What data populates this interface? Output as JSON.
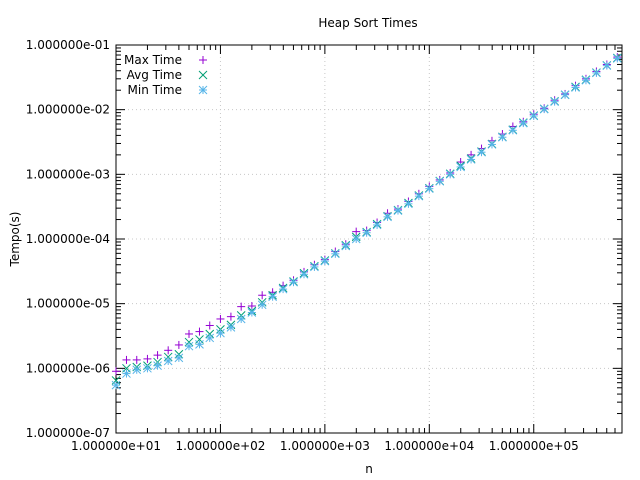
{
  "chart_data": {
    "type": "scatter",
    "title": "Heap Sort Times",
    "xlabel": "n",
    "ylabel": "Tempo(s)",
    "xscale": "log",
    "yscale": "log",
    "xlim": [
      10,
      700000
    ],
    "ylim": [
      1e-07,
      0.1
    ],
    "grid": true,
    "legend_position": "top-left",
    "x_tick_labels": [
      "1.000000e+01",
      "1.000000e+02",
      "1.000000e+03",
      "1.000000e+04",
      "1.000000e+05"
    ],
    "y_tick_labels": [
      "1.000000e-07",
      "1.000000e-06",
      "1.000000e-05",
      "1.000000e-04",
      "1.000000e-03",
      "1.000000e-02",
      "1.000000e-01"
    ],
    "x": [
      10,
      12.6,
      15.8,
      20,
      25,
      31.6,
      40,
      50,
      63,
      79,
      100,
      126,
      158,
      200,
      251,
      316,
      398,
      501,
      631,
      794,
      1000,
      1259,
      1585,
      1995,
      2512,
      3162,
      3981,
      5012,
      6310,
      7943,
      10000,
      12589,
      15849,
      19953,
      25119,
      31623,
      39811,
      50119,
      63096,
      79433,
      100000,
      125893,
      158489,
      199526,
      251189,
      316228,
      398107,
      501187,
      630957
    ],
    "series": [
      {
        "name": "Max Time",
        "color": "#9400d3",
        "marker": "plus",
        "values": [
          9e-07,
          1.35e-06,
          1.35e-06,
          1.4e-06,
          1.6e-06,
          1.9e-06,
          2.3e-06,
          3.4e-06,
          3.7e-06,
          4.6e-06,
          5.8e-06,
          6.3e-06,
          9e-06,
          9.2e-06,
          1.35e-05,
          1.5e-05,
          1.9e-05,
          2.3e-05,
          3.1e-05,
          4e-05,
          4.8e-05,
          6.4e-05,
          8.3e-05,
          0.00013,
          0.000135,
          0.00018,
          0.00025,
          0.00029,
          0.00038,
          0.0005,
          0.00065,
          0.00082,
          0.00105,
          0.00155,
          0.002,
          0.0025,
          0.0033,
          0.0042,
          0.0055,
          0.0065,
          0.0085,
          0.0105,
          0.014,
          0.0175,
          0.0235,
          0.03,
          0.039,
          0.05,
          0.065
        ]
      },
      {
        "name": "Avg Time",
        "color": "#009e73",
        "marker": "cross",
        "values": [
          6.5e-07,
          1e-06,
          1.05e-06,
          1.1e-06,
          1.25e-06,
          1.5e-06,
          1.65e-06,
          2.55e-06,
          2.8e-06,
          3.4e-06,
          4e-06,
          4.7e-06,
          6.6e-06,
          7.7e-06,
          1.05e-05,
          1.35e-05,
          1.75e-05,
          2.2e-05,
          2.95e-05,
          3.8e-05,
          4.65e-05,
          6e-05,
          8e-05,
          0.000108,
          0.000128,
          0.00017,
          0.000225,
          0.00028,
          0.00036,
          0.00047,
          0.00061,
          0.00079,
          0.00102,
          0.00135,
          0.00175,
          0.00225,
          0.00295,
          0.0038,
          0.0049,
          0.0063,
          0.0081,
          0.0103,
          0.0135,
          0.017,
          0.0225,
          0.029,
          0.0375,
          0.0485,
          0.063
        ]
      },
      {
        "name": "Min Time",
        "color": "#56b4e9",
        "marker": "star",
        "values": [
          5.5e-07,
          8.3e-07,
          9.5e-07,
          1e-06,
          1.1e-06,
          1.3e-06,
          1.45e-06,
          2.2e-06,
          2.35e-06,
          2.95e-06,
          3.5e-06,
          4.3e-06,
          5.8e-06,
          7.3e-06,
          9.6e-06,
          1.28e-05,
          1.68e-05,
          2.15e-05,
          2.85e-05,
          3.7e-05,
          4.55e-05,
          5.9e-05,
          7.8e-05,
          0.0001,
          0.000125,
          0.000165,
          0.00022,
          0.000275,
          0.00035,
          0.00046,
          0.0006,
          0.00078,
          0.001,
          0.0013,
          0.0017,
          0.0022,
          0.0029,
          0.00375,
          0.0048,
          0.0062,
          0.008,
          0.0102,
          0.0133,
          0.017,
          0.022,
          0.0285,
          0.037,
          0.048,
          0.062
        ]
      }
    ]
  }
}
